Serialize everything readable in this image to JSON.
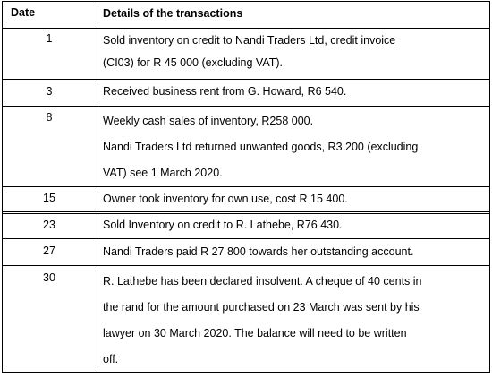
{
  "table": {
    "headers": {
      "date": "Date",
      "details": "Details of the transactions"
    },
    "rows": [
      {
        "date": "1",
        "lines": [
          "Sold inventory on credit to Nandi Traders Ltd, credit invoice",
          "(CI03) for R 45 000 (excluding VAT)."
        ]
      },
      {
        "date": "3",
        "lines": [
          "Received business rent from G. Howard, R6 540."
        ]
      },
      {
        "date": "8",
        "lines": [
          "Weekly cash sales of inventory, R258 000.",
          "Nandi Traders Ltd returned unwanted goods, R3 200 (excluding",
          "VAT) see 1 March 2020."
        ]
      },
      {
        "date": "15",
        "lines": [
          "Owner took inventory for own use, cost R 15 400."
        ]
      },
      {
        "date": "23",
        "lines": [
          "Sold Inventory on credit to R. Lathebe, R76 430."
        ]
      },
      {
        "date": "27",
        "lines": [
          "Nandi Traders paid R 27 800 towards her outstanding account."
        ]
      },
      {
        "date": "30",
        "lines": [
          "R. Lathebe has been declared insolvent. A cheque of 40 cents in",
          "the rand for the amount purchased on 23 March was sent by his",
          "lawyer on 30 March 2020. The balance will need to be written",
          "off."
        ]
      }
    ]
  }
}
